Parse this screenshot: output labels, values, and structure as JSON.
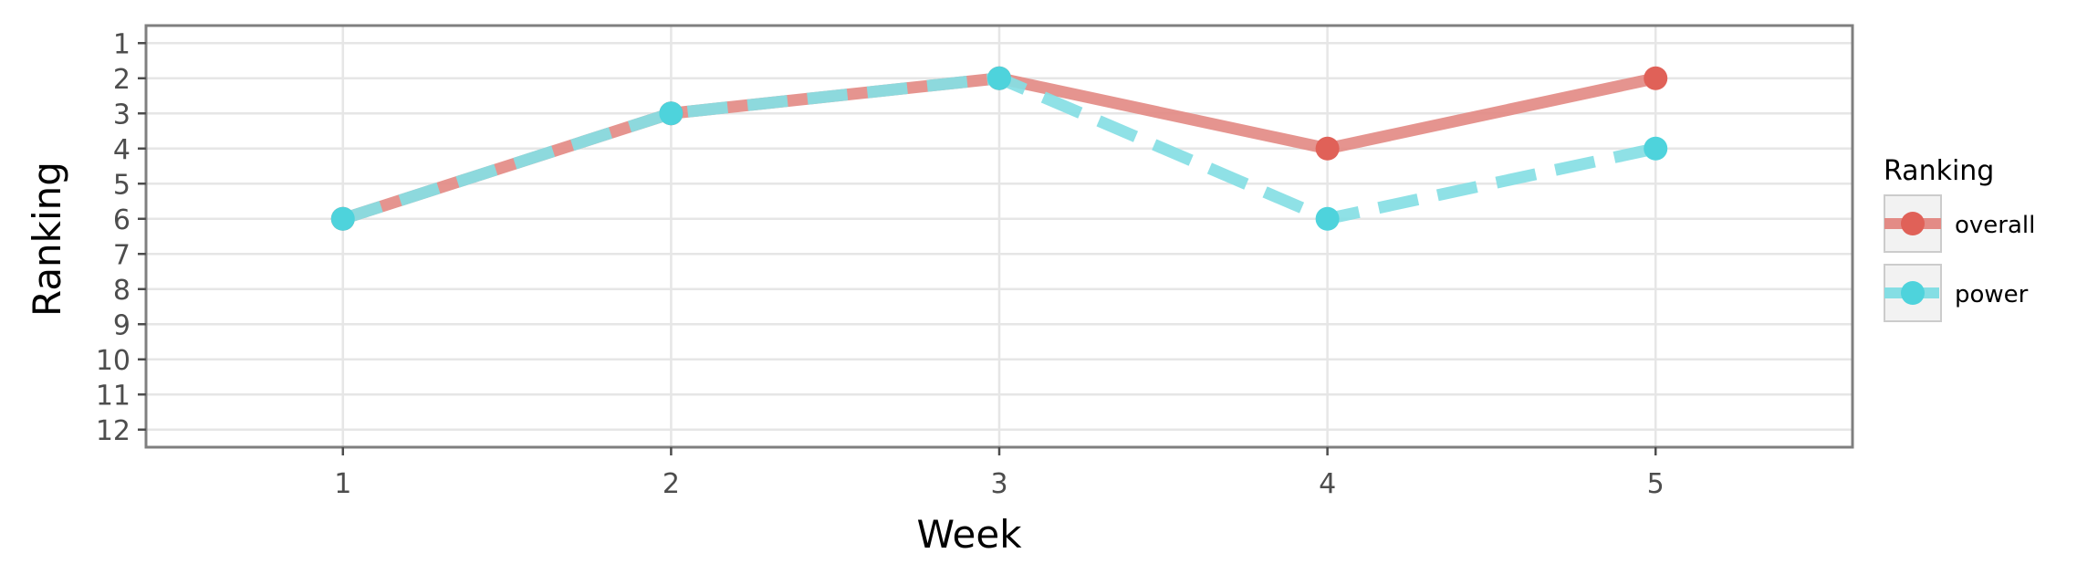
{
  "chart_data": {
    "type": "line",
    "xlabel": "Week",
    "ylabel": "Ranking",
    "x": [
      1,
      2,
      3,
      4,
      5
    ],
    "xticks": [
      "1",
      "2",
      "3",
      "4",
      "5"
    ],
    "yticks": [
      "1",
      "2",
      "3",
      "4",
      "5",
      "6",
      "7",
      "8",
      "9",
      "10",
      "11",
      "12"
    ],
    "xlim": [
      0.4,
      5.6
    ],
    "ylim": [
      12.5,
      0.5
    ],
    "y_reversed": true,
    "grid": true,
    "legend": {
      "title": "Ranking",
      "placement": "right"
    },
    "series": [
      {
        "name": "overall",
        "values": [
          6,
          3,
          2,
          4,
          2
        ],
        "color": "#e06158",
        "line_color": "#e38b86",
        "linestyle": "solid"
      },
      {
        "name": "power",
        "values": [
          6,
          3,
          2,
          6,
          4
        ],
        "color": "#4ed3dc",
        "line_color": "#85dee4",
        "linestyle": "dashed"
      }
    ]
  }
}
